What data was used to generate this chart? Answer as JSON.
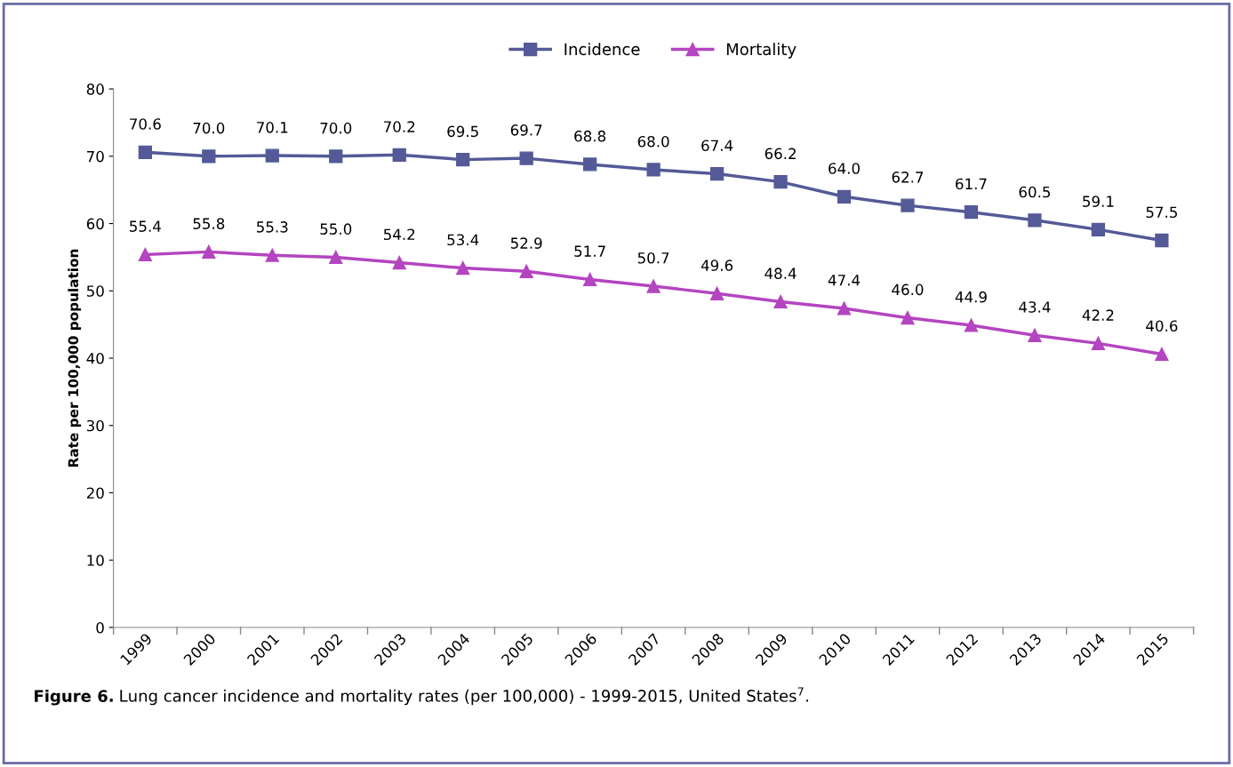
{
  "chart_data": {
    "type": "line",
    "ylabel": "Rate per 100,000 population",
    "categories": [
      "1999",
      "2000",
      "2001",
      "2002",
      "2003",
      "2004",
      "2005",
      "2006",
      "2007",
      "2008",
      "2009",
      "2010",
      "2011",
      "2012",
      "2013",
      "2014",
      "2015"
    ],
    "series": [
      {
        "name": "Incidence",
        "color": "#545a97",
        "marker": "square",
        "values": [
          70.6,
          70.0,
          70.1,
          70.0,
          70.2,
          69.5,
          69.7,
          68.8,
          68.0,
          67.4,
          66.2,
          64.0,
          62.7,
          61.7,
          60.5,
          59.1,
          57.5
        ],
        "value_labels": [
          "70.6",
          "70.0",
          "70.1",
          "70.0",
          "70.2",
          "69.5",
          "69.7",
          "68.8",
          "68.0",
          "67.4",
          "66.2",
          "64.0",
          "62.7",
          "61.7",
          "60.5",
          "59.1",
          "57.5"
        ]
      },
      {
        "name": "Mortality",
        "color": "#b445c0",
        "marker": "triangle",
        "values": [
          55.4,
          55.8,
          55.3,
          55.0,
          54.2,
          53.4,
          52.9,
          51.7,
          50.7,
          49.6,
          48.4,
          47.4,
          46.0,
          44.9,
          43.4,
          42.2,
          40.6
        ],
        "value_labels": [
          "55.4",
          "55.8",
          "55.3",
          "55.0",
          "54.2",
          "53.4",
          "52.9",
          "51.7",
          "50.7",
          "49.6",
          "48.4",
          "47.4",
          "46.0",
          "44.9",
          "43.4",
          "42.2",
          "40.6"
        ]
      }
    ],
    "ylim": [
      0,
      80
    ],
    "yticks": [
      0,
      10,
      20,
      30,
      40,
      50,
      60,
      70,
      80
    ],
    "grid": false,
    "legend": "top",
    "line_style": "solid",
    "annotations": [
      "Figure 6.",
      "Lung cancer incidence and mortality rates (per 100,000) - 1999-2015, United States$^{7}$."
    ]
  }
}
